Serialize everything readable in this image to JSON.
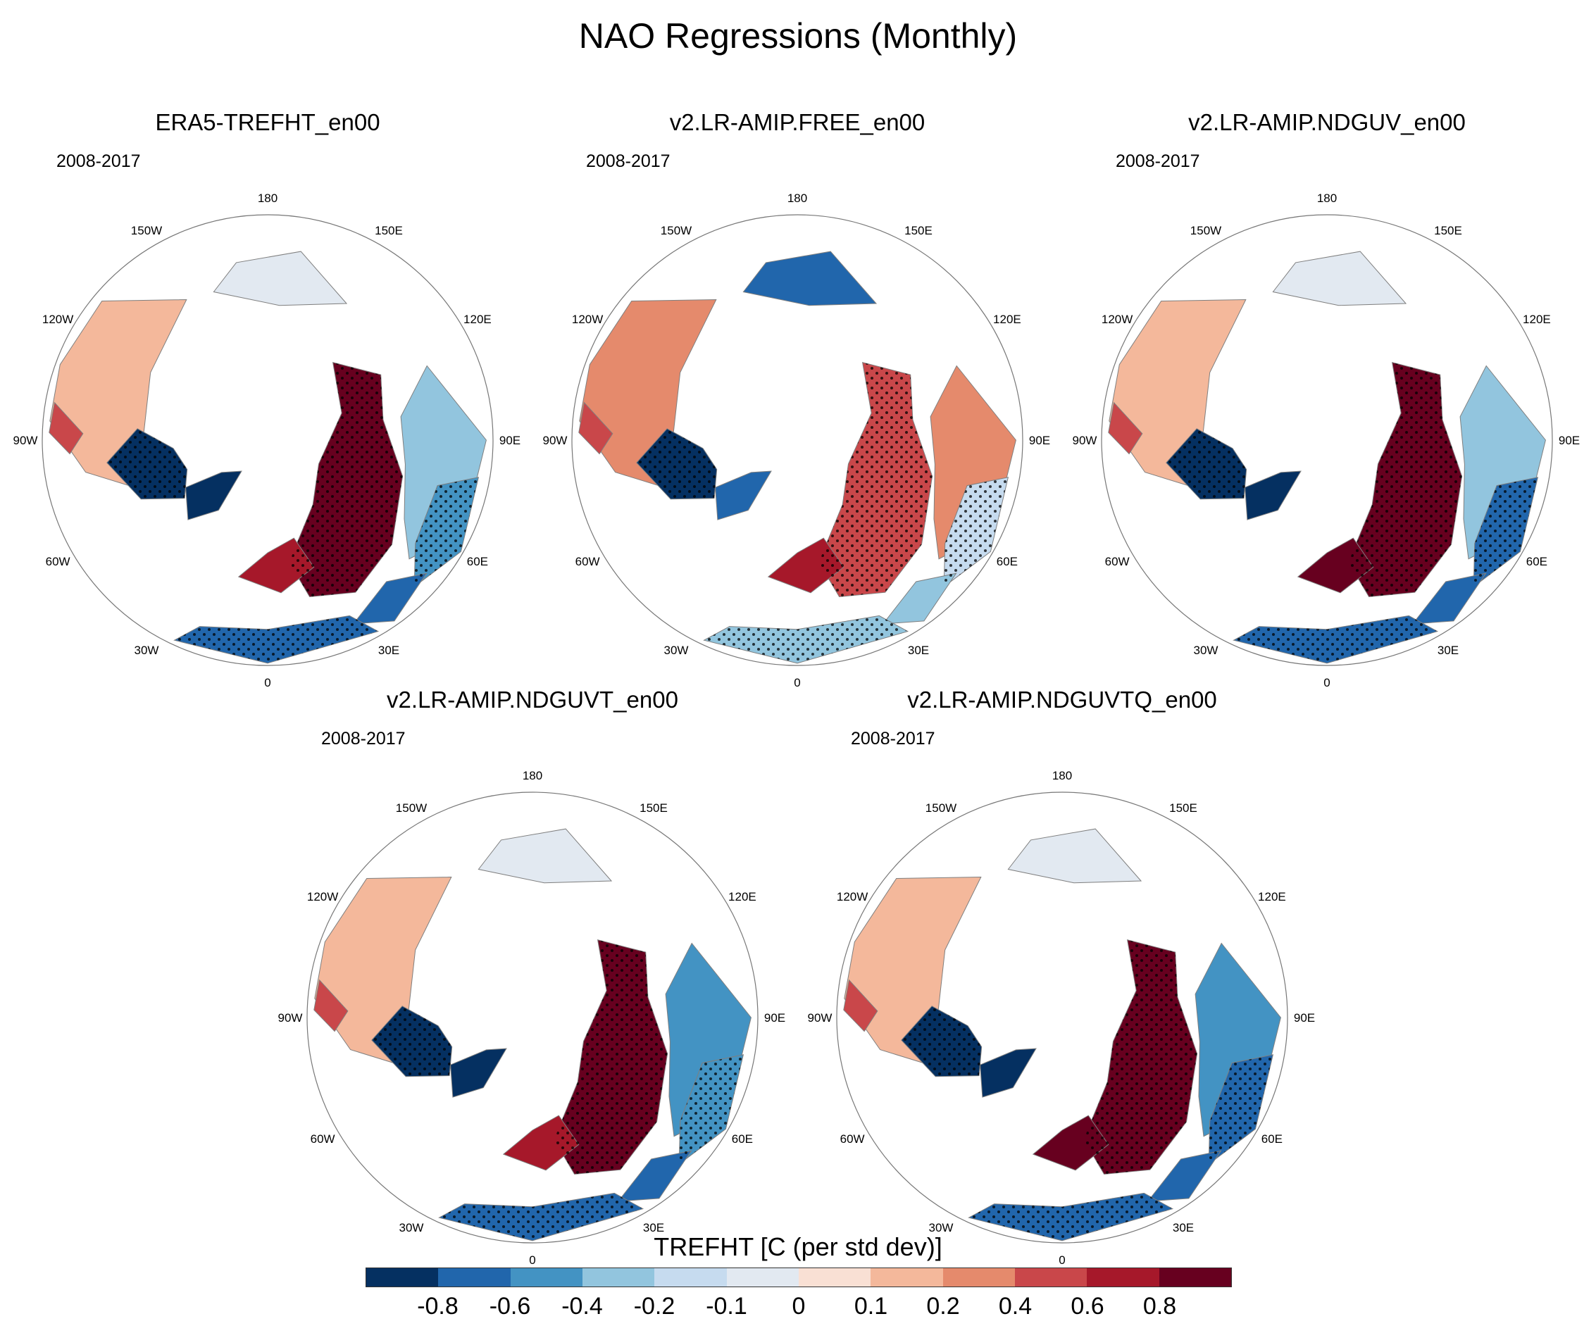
{
  "title": "NAO Regressions (Monthly)",
  "chart_data": {
    "type": "heatmap",
    "projection": "north-polar-stereographic",
    "title": "NAO Regressions (Monthly)",
    "variable_label": "TREFHT [C (per std dev)]",
    "colorbar": {
      "levels": [
        "-0.8",
        "-0.6",
        "-0.4",
        "-0.2",
        "-0.1",
        "0",
        "0.1",
        "0.2",
        "0.4",
        "0.6",
        "0.8"
      ],
      "colors": [
        "#053061",
        "#2166ac",
        "#4393c3",
        "#92c5de",
        "#c6dbef",
        "#e2e9f1",
        "#f9e0d4",
        "#f4b89b",
        "#e58a6c",
        "#c9474a",
        "#a6182a",
        "#67001f"
      ]
    },
    "longitude_labels": [
      "180",
      "150E",
      "120E",
      "90E",
      "60E",
      "30E",
      "0",
      "30W",
      "60W",
      "90W",
      "120W",
      "150W"
    ],
    "panels": [
      {
        "title": "ERA5-TREFHT_en00",
        "period": "2008-2017"
      },
      {
        "title": "v2.LR-AMIP.FREE_en00",
        "period": "2008-2017"
      },
      {
        "title": "v2.LR-AMIP.NDGUV_en00",
        "period": "2008-2017"
      },
      {
        "title": "v2.LR-AMIP.NDGUVT_en00",
        "period": "2008-2017"
      },
      {
        "title": "v2.LR-AMIP.NDGUVTQ_en00",
        "period": "2008-2017"
      }
    ]
  }
}
